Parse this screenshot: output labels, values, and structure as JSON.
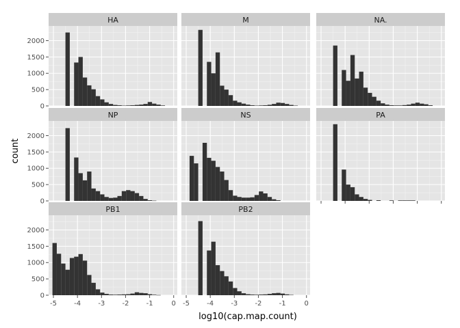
{
  "chart_data": {
    "type": "bar",
    "subtype": "faceted-histogram",
    "xlabel": "log10(cap.map.count)",
    "ylabel": "count",
    "xlim": [
      -5.2,
      0.15
    ],
    "ylim": [
      0,
      2450
    ],
    "xticks": [
      -5,
      -4,
      -3,
      -2,
      -1,
      0
    ],
    "xtick_labels": [
      "-5",
      "-4",
      "-3",
      "-2",
      "-1",
      "0"
    ],
    "yticks": [
      0,
      500,
      1000,
      1500,
      2000
    ],
    "ytick_labels": [
      "0",
      "500",
      "1000",
      "1500",
      "2000"
    ],
    "binwidth": 0.18,
    "grid": true,
    "colors": {
      "bar": "#333333",
      "panel": "#e5e5e5",
      "strip": "#cccccc",
      "grid_major": "#ffffff",
      "grid_minor": "#f2f2f2"
    },
    "facets": [
      {
        "label": "HA",
        "bins": [
          {
            "x0": -4.5,
            "y": 2250
          },
          {
            "x0": -4.14,
            "y": 1330
          },
          {
            "x0": -3.96,
            "y": 1500
          },
          {
            "x0": -3.78,
            "y": 870
          },
          {
            "x0": -3.6,
            "y": 630
          },
          {
            "x0": -3.42,
            "y": 510
          },
          {
            "x0": -3.24,
            "y": 300
          },
          {
            "x0": -3.06,
            "y": 200
          },
          {
            "x0": -2.88,
            "y": 110
          },
          {
            "x0": -2.7,
            "y": 60
          },
          {
            "x0": -2.52,
            "y": 30
          },
          {
            "x0": -2.34,
            "y": 20
          },
          {
            "x0": -2.16,
            "y": 10
          },
          {
            "x0": -1.98,
            "y": 15
          },
          {
            "x0": -1.8,
            "y": 20
          },
          {
            "x0": -1.62,
            "y": 30
          },
          {
            "x0": -1.44,
            "y": 40
          },
          {
            "x0": -1.26,
            "y": 60
          },
          {
            "x0": -1.08,
            "y": 120
          },
          {
            "x0": -0.9,
            "y": 70
          },
          {
            "x0": -0.72,
            "y": 40
          },
          {
            "x0": -0.54,
            "y": 15
          }
        ]
      },
      {
        "label": "M",
        "bins": [
          {
            "x0": -4.5,
            "y": 2330
          },
          {
            "x0": -4.14,
            "y": 1350
          },
          {
            "x0": -3.96,
            "y": 1000
          },
          {
            "x0": -3.78,
            "y": 1640
          },
          {
            "x0": -3.6,
            "y": 620
          },
          {
            "x0": -3.42,
            "y": 500
          },
          {
            "x0": -3.24,
            "y": 330
          },
          {
            "x0": -3.06,
            "y": 160
          },
          {
            "x0": -2.88,
            "y": 110
          },
          {
            "x0": -2.7,
            "y": 70
          },
          {
            "x0": -2.52,
            "y": 40
          },
          {
            "x0": -2.34,
            "y": 20
          },
          {
            "x0": -2.16,
            "y": 10
          },
          {
            "x0": -1.98,
            "y": 15
          },
          {
            "x0": -1.8,
            "y": 20
          },
          {
            "x0": -1.62,
            "y": 35
          },
          {
            "x0": -1.44,
            "y": 60
          },
          {
            "x0": -1.26,
            "y": 100
          },
          {
            "x0": -1.08,
            "y": 90
          },
          {
            "x0": -0.9,
            "y": 60
          },
          {
            "x0": -0.72,
            "y": 30
          },
          {
            "x0": -0.54,
            "y": 10
          }
        ]
      },
      {
        "label": "NA.",
        "bins": [
          {
            "x0": -4.5,
            "y": 1850
          },
          {
            "x0": -4.14,
            "y": 1100
          },
          {
            "x0": -3.96,
            "y": 770
          },
          {
            "x0": -3.78,
            "y": 1560
          },
          {
            "x0": -3.6,
            "y": 840
          },
          {
            "x0": -3.42,
            "y": 1050
          },
          {
            "x0": -3.24,
            "y": 560
          },
          {
            "x0": -3.06,
            "y": 400
          },
          {
            "x0": -2.88,
            "y": 280
          },
          {
            "x0": -2.7,
            "y": 160
          },
          {
            "x0": -2.52,
            "y": 80
          },
          {
            "x0": -2.34,
            "y": 40
          },
          {
            "x0": -2.16,
            "y": 20
          },
          {
            "x0": -1.98,
            "y": 15
          },
          {
            "x0": -1.8,
            "y": 15
          },
          {
            "x0": -1.62,
            "y": 25
          },
          {
            "x0": -1.44,
            "y": 40
          },
          {
            "x0": -1.26,
            "y": 70
          },
          {
            "x0": -1.08,
            "y": 100
          },
          {
            "x0": -0.9,
            "y": 70
          },
          {
            "x0": -0.72,
            "y": 50
          },
          {
            "x0": -0.54,
            "y": 20
          }
        ]
      },
      {
        "label": "NP",
        "bins": [
          {
            "x0": -4.5,
            "y": 2230
          },
          {
            "x0": -4.14,
            "y": 1330
          },
          {
            "x0": -3.96,
            "y": 850
          },
          {
            "x0": -3.78,
            "y": 630
          },
          {
            "x0": -3.6,
            "y": 900
          },
          {
            "x0": -3.42,
            "y": 380
          },
          {
            "x0": -3.24,
            "y": 300
          },
          {
            "x0": -3.06,
            "y": 200
          },
          {
            "x0": -2.88,
            "y": 120
          },
          {
            "x0": -2.7,
            "y": 90
          },
          {
            "x0": -2.52,
            "y": 100
          },
          {
            "x0": -2.34,
            "y": 150
          },
          {
            "x0": -2.16,
            "y": 300
          },
          {
            "x0": -1.98,
            "y": 330
          },
          {
            "x0": -1.8,
            "y": 300
          },
          {
            "x0": -1.62,
            "y": 240
          },
          {
            "x0": -1.44,
            "y": 150
          },
          {
            "x0": -1.26,
            "y": 60
          },
          {
            "x0": -1.08,
            "y": 20
          },
          {
            "x0": -0.9,
            "y": 8
          }
        ]
      },
      {
        "label": "NS",
        "bins": [
          {
            "x0": -4.86,
            "y": 1380
          },
          {
            "x0": -4.68,
            "y": 1150
          },
          {
            "x0": -4.32,
            "y": 1780
          },
          {
            "x0": -4.14,
            "y": 1320
          },
          {
            "x0": -3.96,
            "y": 1230
          },
          {
            "x0": -3.78,
            "y": 1040
          },
          {
            "x0": -3.6,
            "y": 900
          },
          {
            "x0": -3.42,
            "y": 640
          },
          {
            "x0": -3.24,
            "y": 330
          },
          {
            "x0": -3.06,
            "y": 160
          },
          {
            "x0": -2.88,
            "y": 120
          },
          {
            "x0": -2.7,
            "y": 100
          },
          {
            "x0": -2.52,
            "y": 100
          },
          {
            "x0": -2.34,
            "y": 110
          },
          {
            "x0": -2.16,
            "y": 180
          },
          {
            "x0": -1.98,
            "y": 290
          },
          {
            "x0": -1.8,
            "y": 230
          },
          {
            "x0": -1.62,
            "y": 120
          },
          {
            "x0": -1.44,
            "y": 50
          },
          {
            "x0": -1.26,
            "y": 20
          }
        ]
      },
      {
        "label": "PA",
        "bins": [
          {
            "x0": -4.5,
            "y": 2350
          },
          {
            "x0": -4.14,
            "y": 960
          },
          {
            "x0": -3.96,
            "y": 500
          },
          {
            "x0": -3.78,
            "y": 420
          },
          {
            "x0": -3.6,
            "y": 200
          },
          {
            "x0": -3.42,
            "y": 120
          },
          {
            "x0": -3.24,
            "y": 60
          },
          {
            "x0": -3.06,
            "y": 30
          },
          {
            "x0": -2.7,
            "y": 20
          },
          {
            "x0": -2.16,
            "y": 15
          },
          {
            "x0": -1.8,
            "y": 15
          },
          {
            "x0": -1.62,
            "y": 15
          },
          {
            "x0": -1.44,
            "y": 15
          },
          {
            "x0": -1.26,
            "y": 15
          }
        ]
      },
      {
        "label": "PB1",
        "bins": [
          {
            "x0": -5.04,
            "y": 1600
          },
          {
            "x0": -4.86,
            "y": 1270
          },
          {
            "x0": -4.68,
            "y": 970
          },
          {
            "x0": -4.5,
            "y": 780
          },
          {
            "x0": -4.32,
            "y": 1140
          },
          {
            "x0": -4.14,
            "y": 1180
          },
          {
            "x0": -3.96,
            "y": 1260
          },
          {
            "x0": -3.78,
            "y": 1060
          },
          {
            "x0": -3.6,
            "y": 620
          },
          {
            "x0": -3.42,
            "y": 380
          },
          {
            "x0": -3.24,
            "y": 180
          },
          {
            "x0": -3.06,
            "y": 80
          },
          {
            "x0": -2.88,
            "y": 40
          },
          {
            "x0": -2.7,
            "y": 20
          },
          {
            "x0": -2.52,
            "y": 15
          },
          {
            "x0": -2.34,
            "y": 20
          },
          {
            "x0": -2.16,
            "y": 25
          },
          {
            "x0": -1.98,
            "y": 30
          },
          {
            "x0": -1.8,
            "y": 50
          },
          {
            "x0": -1.62,
            "y": 90
          },
          {
            "x0": -1.44,
            "y": 70
          },
          {
            "x0": -1.26,
            "y": 60
          },
          {
            "x0": -1.08,
            "y": 30
          },
          {
            "x0": -0.9,
            "y": 15
          },
          {
            "x0": -0.72,
            "y": 5
          }
        ]
      },
      {
        "label": "PB2",
        "bins": [
          {
            "x0": -4.5,
            "y": 2270
          },
          {
            "x0": -4.14,
            "y": 1370
          },
          {
            "x0": -3.96,
            "y": 1640
          },
          {
            "x0": -3.78,
            "y": 920
          },
          {
            "x0": -3.6,
            "y": 740
          },
          {
            "x0": -3.42,
            "y": 580
          },
          {
            "x0": -3.24,
            "y": 420
          },
          {
            "x0": -3.06,
            "y": 220
          },
          {
            "x0": -2.88,
            "y": 120
          },
          {
            "x0": -2.7,
            "y": 60
          },
          {
            "x0": -2.52,
            "y": 30
          },
          {
            "x0": -2.34,
            "y": 20
          },
          {
            "x0": -2.16,
            "y": 15
          },
          {
            "x0": -1.98,
            "y": 20
          },
          {
            "x0": -1.8,
            "y": 25
          },
          {
            "x0": -1.62,
            "y": 40
          },
          {
            "x0": -1.44,
            "y": 60
          },
          {
            "x0": -1.26,
            "y": 70
          },
          {
            "x0": -1.08,
            "y": 50
          },
          {
            "x0": -0.9,
            "y": 25
          },
          {
            "x0": -0.72,
            "y": 10
          }
        ]
      }
    ]
  }
}
